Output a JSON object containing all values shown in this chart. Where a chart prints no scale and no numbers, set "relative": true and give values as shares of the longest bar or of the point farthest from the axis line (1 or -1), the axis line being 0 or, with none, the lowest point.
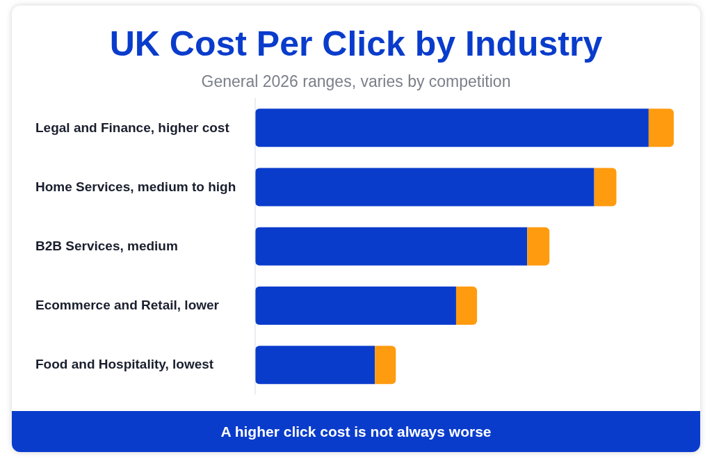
{
  "chart_data": {
    "type": "bar",
    "orientation": "horizontal",
    "stacked": true,
    "relative": true,
    "title": "UK Cost Per Click by Industry",
    "subtitle": "General 2026 ranges, varies by competition",
    "categories": [
      "Legal and Finance, higher cost",
      "Home Services, medium to high",
      "B2B Services, medium",
      "Ecommerce and Retail, lower",
      "Food and Hospitality, lowest"
    ],
    "series": [
      {
        "color": "#0a3ccc",
        "values": [
          0.94,
          0.81,
          0.65,
          0.48,
          0.286
        ]
      },
      {
        "color": "#ff9b0f",
        "values": [
          0.06,
          0.053,
          0.053,
          0.05,
          0.05
        ]
      }
    ],
    "annotations": [
      "A higher click cost is not always worse"
    ],
    "grid": false,
    "legend": false
  }
}
